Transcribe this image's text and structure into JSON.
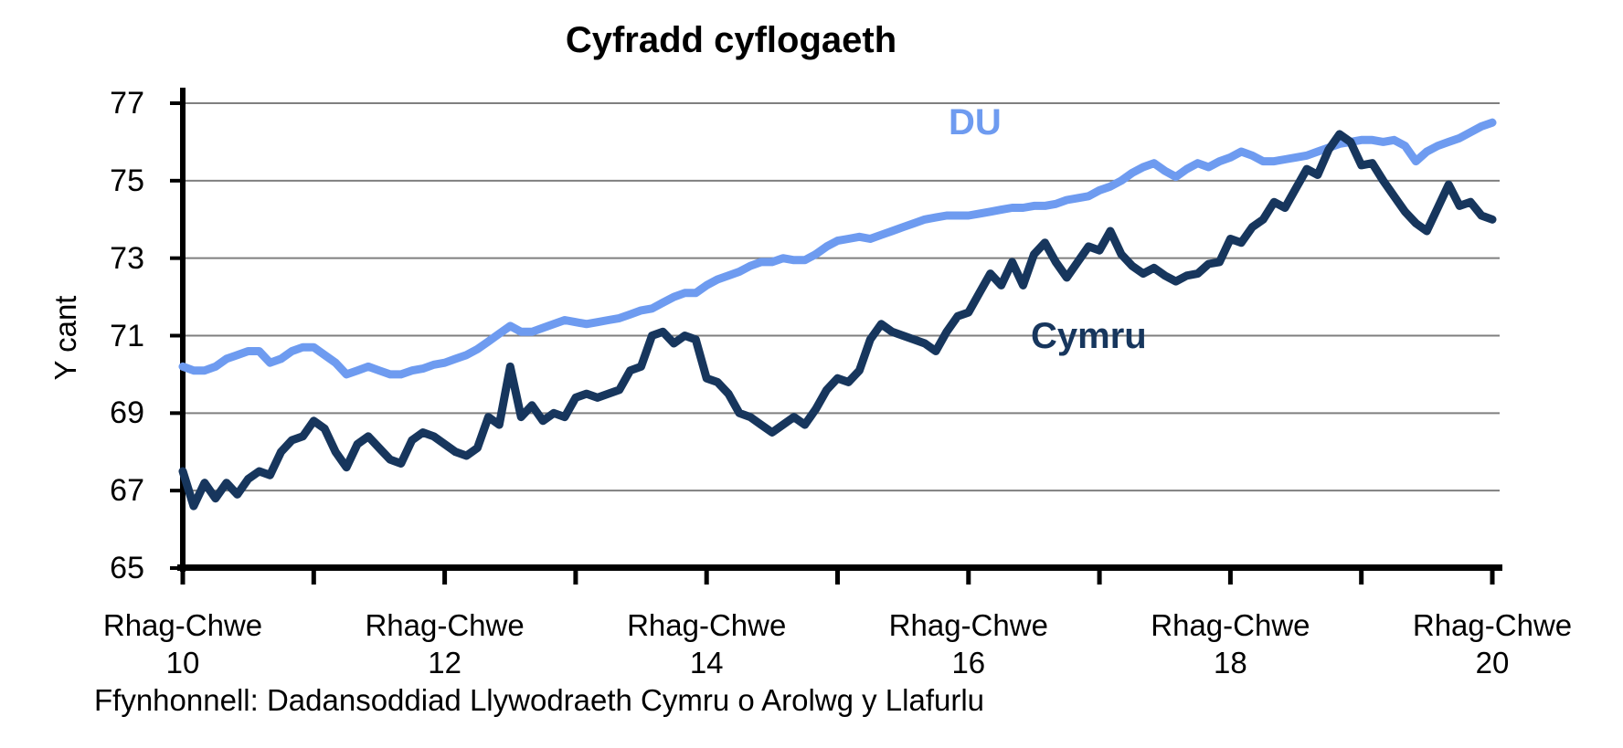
{
  "title": "Cyfradd cyflogaeth",
  "source": "Ffynhonnell: Dadansoddiad Llywodraeth Cymru o Arolwg y Llafurlu",
  "y_axis": {
    "label": "Y cant",
    "ticks": [
      77,
      75,
      73,
      71,
      69,
      67,
      65
    ],
    "max": 77,
    "min": 65
  },
  "x_axis": {
    "ticks": [
      {
        "line1": "Rhag-Chwe",
        "line2": "10"
      },
      {
        "line1": "Rhag-Chwe",
        "line2": "12"
      },
      {
        "line1": "Rhag-Chwe",
        "line2": "14"
      },
      {
        "line1": "Rhag-Chwe",
        "line2": "16"
      },
      {
        "line1": "Rhag-Chwe",
        "line2": "18"
      },
      {
        "line1": "Rhag-Chwe",
        "line2": "20"
      }
    ],
    "minor_tick_count": 11
  },
  "series_labels": {
    "du": "DU",
    "cymru": "Cymru"
  },
  "colors": {
    "du": "#6E9BF0",
    "cymru": "#17365D",
    "grid": "#7F7F7F",
    "axis": "#000000",
    "background": "#FFFFFF",
    "text": "#000000"
  },
  "chart_data": {
    "type": "line",
    "title": "Cyfradd cyflogaeth",
    "xlabel": "",
    "ylabel": "Y cant",
    "ylim": [
      65,
      77
    ],
    "grid": true,
    "legend_position": "inline-labels",
    "x": "121 monthly rolling 3-month periods, Rhag-Chwe 10 to Rhag-Chwe 20",
    "x_tick_labels": [
      "Rhag-Chwe 10",
      "Rhag-Chwe 12",
      "Rhag-Chwe 14",
      "Rhag-Chwe 16",
      "Rhag-Chwe 18",
      "Rhag-Chwe 20"
    ],
    "series": [
      {
        "name": "DU",
        "color": "#6E9BF0",
        "values": [
          70.2,
          70.1,
          70.1,
          70.2,
          70.4,
          70.5,
          70.6,
          70.6,
          70.3,
          70.4,
          70.6,
          70.7,
          70.7,
          70.5,
          70.3,
          70.0,
          70.1,
          70.2,
          70.1,
          70.0,
          70.0,
          70.1,
          70.15,
          70.25,
          70.3,
          70.4,
          70.5,
          70.65,
          70.85,
          71.05,
          71.25,
          71.1,
          71.1,
          71.2,
          71.3,
          71.4,
          71.35,
          71.3,
          71.35,
          71.4,
          71.45,
          71.55,
          71.65,
          71.7,
          71.85,
          72.0,
          72.1,
          72.1,
          72.3,
          72.45,
          72.55,
          72.65,
          72.8,
          72.9,
          72.9,
          73.0,
          72.95,
          72.95,
          73.1,
          73.3,
          73.45,
          73.5,
          73.55,
          73.5,
          73.6,
          73.7,
          73.8,
          73.9,
          74.0,
          74.05,
          74.1,
          74.1,
          74.1,
          74.15,
          74.2,
          74.25,
          74.3,
          74.3,
          74.35,
          74.35,
          74.4,
          74.5,
          74.55,
          74.6,
          74.75,
          74.85,
          75.0,
          75.2,
          75.35,
          75.45,
          75.25,
          75.1,
          75.3,
          75.45,
          75.35,
          75.5,
          75.6,
          75.75,
          75.65,
          75.5,
          75.5,
          75.55,
          75.6,
          75.65,
          75.75,
          75.85,
          75.95,
          76.0,
          76.05,
          76.05,
          76.0,
          76.05,
          75.9,
          75.5,
          75.75,
          75.9,
          76.0,
          76.1,
          76.25,
          76.4,
          76.5
        ]
      },
      {
        "name": "Cymru",
        "color": "#17365D",
        "values": [
          67.5,
          66.6,
          67.2,
          66.8,
          67.2,
          66.9,
          67.3,
          67.5,
          67.4,
          68.0,
          68.3,
          68.4,
          68.8,
          68.6,
          68.0,
          67.6,
          68.2,
          68.4,
          68.1,
          67.8,
          67.7,
          68.3,
          68.5,
          68.4,
          68.2,
          68.0,
          67.9,
          68.1,
          68.9,
          68.7,
          70.2,
          68.9,
          69.2,
          68.8,
          69.0,
          68.9,
          69.4,
          69.5,
          69.4,
          69.5,
          69.6,
          70.1,
          70.2,
          71.0,
          71.1,
          70.8,
          71.0,
          70.9,
          69.9,
          69.8,
          69.5,
          69.0,
          68.9,
          68.7,
          68.5,
          68.7,
          68.9,
          68.7,
          69.1,
          69.6,
          69.9,
          69.8,
          70.1,
          70.9,
          71.3,
          71.1,
          71.0,
          70.9,
          70.8,
          70.6,
          71.1,
          71.5,
          71.6,
          72.1,
          72.6,
          72.3,
          72.9,
          72.3,
          73.1,
          73.4,
          72.9,
          72.5,
          72.9,
          73.3,
          73.2,
          73.7,
          73.1,
          72.8,
          72.6,
          72.75,
          72.55,
          72.4,
          72.55,
          72.6,
          72.85,
          72.9,
          73.5,
          73.4,
          73.8,
          74.0,
          74.45,
          74.3,
          74.8,
          75.3,
          75.15,
          75.8,
          76.2,
          76.0,
          75.4,
          75.45,
          75.0,
          74.6,
          74.2,
          73.9,
          73.7,
          74.3,
          74.9,
          74.35,
          74.45,
          74.1,
          74.0
        ]
      }
    ]
  }
}
